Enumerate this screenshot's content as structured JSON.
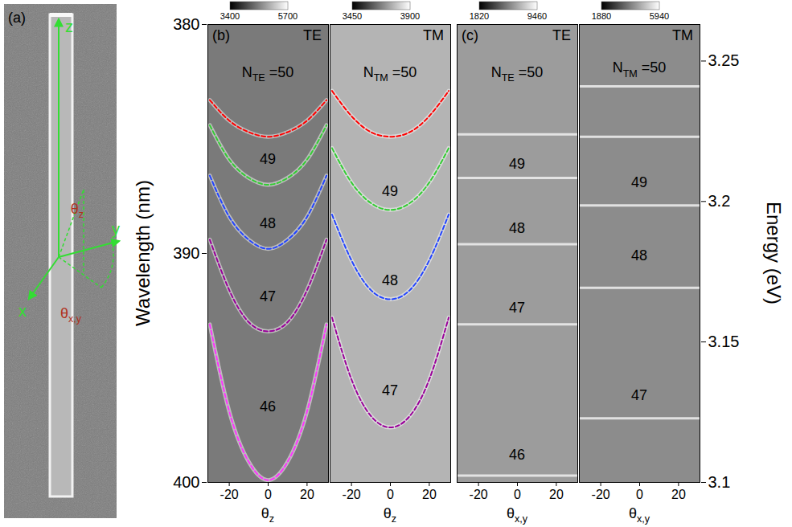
{
  "panel_a": {
    "panel_label": "(a)",
    "axis_labels": [
      "x",
      "y",
      "z"
    ],
    "angle_labels": [
      "θz",
      "θx,y"
    ]
  },
  "axes": {
    "ylabel": "Wavelength (nm)",
    "ylim": [
      380,
      400
    ],
    "yticks": [
      380,
      390,
      400
    ],
    "y2label": "Energy (eV)",
    "y2lim": [
      3.1,
      3.263
    ],
    "y2ticks": [
      3.1,
      3.15,
      3.2,
      3.25
    ]
  },
  "chart_data": [
    {
      "type": "line",
      "panel_label": "(b)",
      "title": "TE",
      "xlabel": "θz",
      "xlim": [
        -31,
        31
      ],
      "xticks": [
        -20,
        0,
        20
      ],
      "colorbar": {
        "range": [
          3400,
          5700
        ],
        "ticks": [
          3400,
          5700
        ]
      },
      "x": [
        -30,
        -20,
        -10,
        0,
        10,
        20,
        30
      ],
      "series": [
        {
          "name": "50",
          "color": "#ff0000",
          "line_style": "dashed",
          "values": [
            383.3,
            384.2,
            384.7,
            384.9,
            384.7,
            384.2,
            383.3
          ]
        },
        {
          "name": "49",
          "color": "#33cc33",
          "line_style": "dashed",
          "values": [
            384.4,
            385.9,
            386.7,
            387.0,
            386.7,
            385.9,
            384.4
          ]
        },
        {
          "name": "48",
          "color": "#2244ff",
          "line_style": "dashed",
          "values": [
            386.6,
            388.4,
            389.4,
            389.8,
            389.4,
            388.4,
            386.6
          ]
        },
        {
          "name": "47",
          "color": "#990099",
          "line_style": "dashed",
          "values": [
            389.4,
            391.6,
            393.0,
            393.4,
            393.0,
            391.6,
            389.4
          ]
        },
        {
          "name": "46",
          "color": "#ff33ff",
          "line_style": "dashed",
          "values": [
            393.1,
            396.9,
            399.1,
            399.9,
            399.1,
            396.9,
            393.1
          ]
        }
      ],
      "annotations": [
        {
          "text": "NTE =50",
          "x": 0,
          "y": 382.1
        },
        {
          "text": "49",
          "x": 0,
          "y": 385.9
        },
        {
          "text": "48",
          "x": 0,
          "y": 388.7
        },
        {
          "text": "47",
          "x": 0,
          "y": 391.9
        },
        {
          "text": "46",
          "x": 0,
          "y": 396.7
        }
      ]
    },
    {
      "type": "line",
      "title": "TM",
      "xlabel": "θz",
      "xlim": [
        -31,
        31
      ],
      "xticks": [
        -20,
        0,
        20
      ],
      "colorbar": {
        "range": [
          3450,
          3900
        ],
        "ticks": [
          3450,
          3900
        ]
      },
      "x": [
        -30,
        -20,
        -10,
        0,
        10,
        20,
        30
      ],
      "series": [
        {
          "name": "50",
          "color": "#ff0000",
          "line_style": "dashed",
          "values": [
            382.9,
            384.0,
            384.7,
            384.9,
            384.7,
            384.0,
            382.9
          ]
        },
        {
          "name": "49",
          "color": "#33cc33",
          "line_style": "dashed",
          "values": [
            385.4,
            386.9,
            387.8,
            388.1,
            387.8,
            386.9,
            385.4
          ]
        },
        {
          "name": "48",
          "color": "#2244ff",
          "line_style": "dashed",
          "values": [
            388.3,
            390.3,
            391.6,
            392.0,
            391.6,
            390.3,
            388.3
          ]
        },
        {
          "name": "47",
          "color": "#990099",
          "line_style": "dashed",
          "values": [
            392.8,
            395.5,
            397.1,
            397.6,
            397.1,
            395.5,
            392.8
          ]
        }
      ],
      "annotations": [
        {
          "text": "NTM =50",
          "x": 0,
          "y": 382.1
        },
        {
          "text": "49",
          "x": 0,
          "y": 387.3
        },
        {
          "text": "48",
          "x": 0,
          "y": 391.2
        },
        {
          "text": "47",
          "x": 0,
          "y": 396.0
        }
      ]
    },
    {
      "type": "hline",
      "panel_label": "(c)",
      "title": "TE",
      "xlabel": "θx,y",
      "xlim": [
        -31,
        31
      ],
      "xticks": [
        -20,
        0,
        20
      ],
      "colorbar": {
        "range": [
          1820,
          9460
        ],
        "ticks": [
          1820,
          9460
        ]
      },
      "color": "#f0f0f0",
      "lines": [
        384.8,
        386.7,
        389.6,
        393.1,
        399.7
      ],
      "annotations": [
        {
          "text": "NTE =50",
          "x": 0,
          "y": 382.1
        },
        {
          "text": "49",
          "x": 0,
          "y": 386.1
        },
        {
          "text": "48",
          "x": 0,
          "y": 388.9
        },
        {
          "text": "47",
          "x": 0,
          "y": 392.4
        },
        {
          "text": "46",
          "x": 0,
          "y": 398.8
        }
      ]
    },
    {
      "type": "hline",
      "title": "TM",
      "xlabel": "θx,y",
      "xlim": [
        -31,
        31
      ],
      "xticks": [
        -20,
        0,
        20
      ],
      "colorbar": {
        "range": [
          1880,
          5940
        ],
        "ticks": [
          1880,
          5940
        ]
      },
      "color": "#f0f0f0",
      "lines": [
        382.7,
        384.9,
        387.9,
        391.5,
        397.2
      ],
      "annotations": [
        {
          "text": "NTM =50",
          "x": 0,
          "y": 381.9
        },
        {
          "text": "49",
          "x": 0,
          "y": 386.9
        },
        {
          "text": "48",
          "x": 0,
          "y": 390.1
        },
        {
          "text": "47",
          "x": 0,
          "y": 396.2
        }
      ]
    }
  ]
}
